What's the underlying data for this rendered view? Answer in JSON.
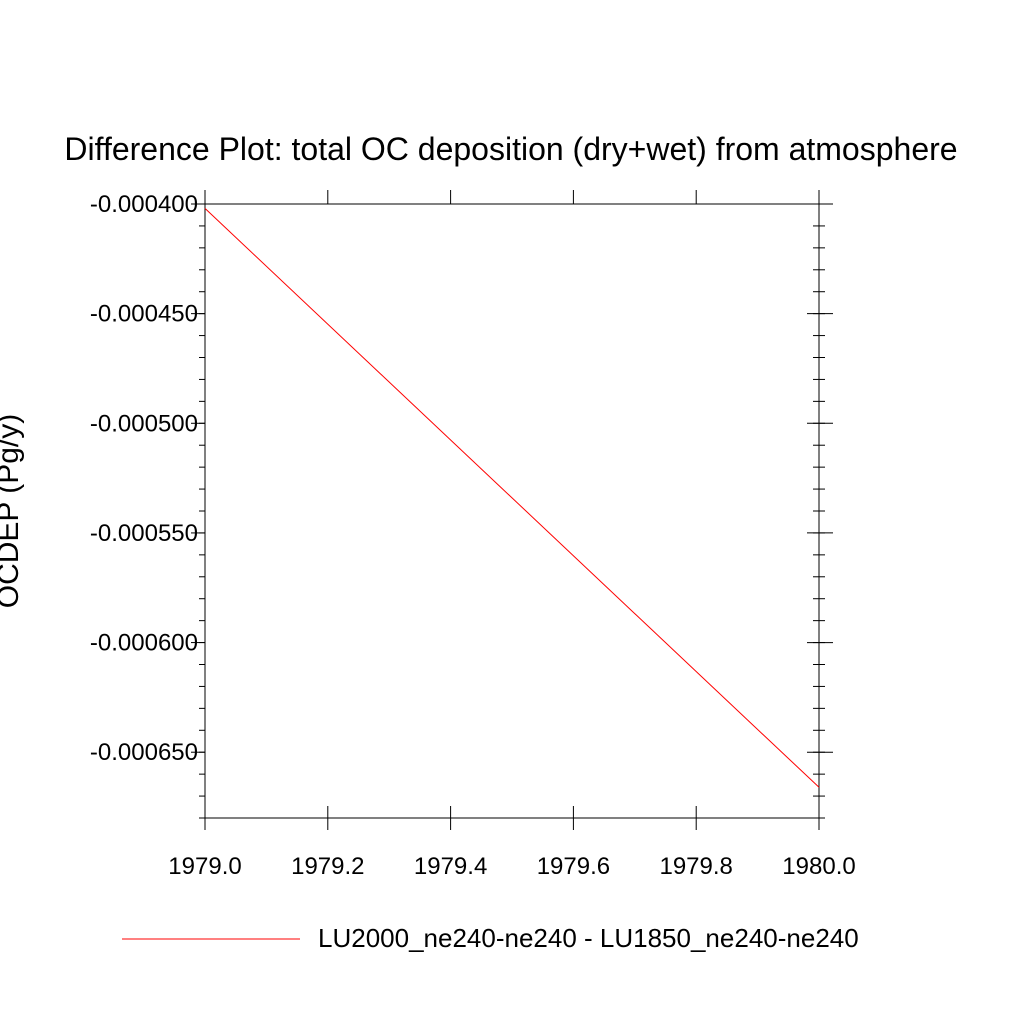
{
  "chart_data": {
    "type": "line",
    "title": "Difference Plot: total OC deposition (dry+wet) from atmosphere",
    "xlabel": "",
    "ylabel": "OCDEP  (Pg/y)",
    "xlim": [
      1979.0,
      1980.0
    ],
    "ylim": [
      -0.00068,
      -0.0004
    ],
    "x_ticks": [
      1979.0,
      1979.2,
      1979.4,
      1979.6,
      1979.8,
      1980.0
    ],
    "x_tick_labels": [
      "1979.0",
      "1979.2",
      "1979.4",
      "1979.6",
      "1979.8",
      "1980.0"
    ],
    "y_ticks": [
      -0.0004,
      -0.00045,
      -0.0005,
      -0.00055,
      -0.0006,
      -0.00065
    ],
    "y_tick_labels": [
      "-0.000400",
      "-0.000450",
      "-0.000500",
      "-0.000550",
      "-0.000600",
      "-0.000650"
    ],
    "grid": false,
    "legend_position": "bottom",
    "series": [
      {
        "name": "LU2000_ne240-ne240 - LU1850_ne240-ne240",
        "color": "#ff0000",
        "x": [
          1979.0,
          1980.0
        ],
        "y": [
          -0.000402,
          -0.000666
        ]
      }
    ]
  }
}
